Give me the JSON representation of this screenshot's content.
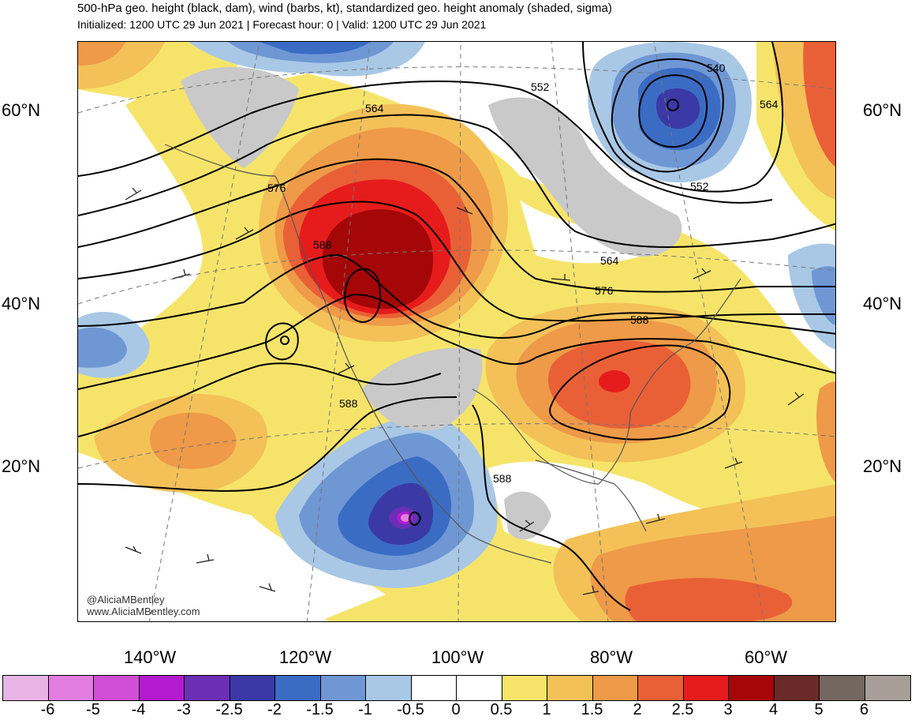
{
  "header": {
    "title": "500-hPa geo. height (black, dam), wind (barbs, kt), standardized geo. height anomaly (shaded, sigma)",
    "subtitle": "Initialized: 1200 UTC 29 Jun 2021 | Forecast hour: 0 | Valid: 1200 UTC 29 Jun 2021"
  },
  "map": {
    "lat_labels": [
      "60°N",
      "40°N",
      "20°N"
    ],
    "lon_labels": [
      "140°W",
      "120°W",
      "100°W",
      "80°W",
      "60°W"
    ],
    "contour_labels": [
      "540",
      "552",
      "552",
      "564",
      "564",
      "564",
      "576",
      "576",
      "588",
      "588",
      "588",
      "588"
    ],
    "credit_handle": "@AliciaMBentley",
    "credit_url": "www.AliciaMBentley.com"
  },
  "colorbar": {
    "ticks": [
      "-6",
      "-5",
      "-4",
      "-3",
      "-2.5",
      "-2",
      "-1.5",
      "-1",
      "-0.5",
      "0",
      "0.5",
      "1",
      "1.5",
      "2",
      "2.5",
      "3",
      "4",
      "5",
      "6"
    ],
    "colors": [
      "#e8b4e6",
      "#e37ee0",
      "#d14fd6",
      "#b21bd0",
      "#6a2fb4",
      "#3b39a6",
      "#3a6cc4",
      "#6f97d4",
      "#a8c8e6",
      "#ffffff",
      "#ffffff",
      "#f6e46a",
      "#f3c158",
      "#ee9a48",
      "#ea6036",
      "#e61c1c",
      "#a50608",
      "#6a2a28",
      "#74675f",
      "#a89e98"
    ]
  }
}
